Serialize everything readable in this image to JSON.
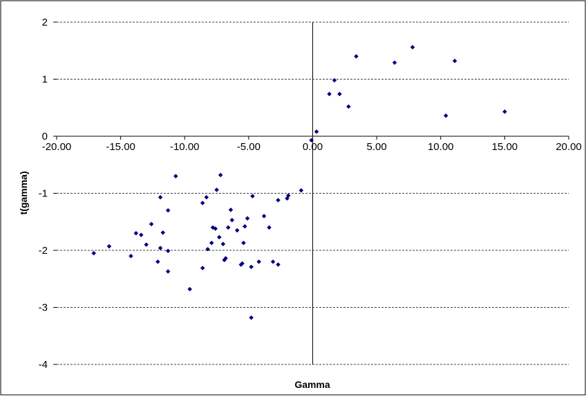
{
  "chart_data": {
    "type": "scatter",
    "title": "",
    "xlabel": "Gamma",
    "ylabel": "t(gamma)",
    "xlim": [
      -20,
      20
    ],
    "ylim": [
      -4,
      2
    ],
    "x_ticks": [
      -20,
      -15,
      -10,
      -5,
      0,
      5,
      10,
      15,
      20
    ],
    "x_tick_labels": [
      "-20.00",
      "-15.00",
      "-10.00",
      "-5.00",
      "0.00",
      "5.00",
      "10.00",
      "15.00",
      "20.00"
    ],
    "y_ticks": [
      2,
      1,
      0,
      -1,
      -2,
      -3,
      -4
    ],
    "y_tick_labels": [
      "2",
      "1",
      "0",
      "-1",
      "-2",
      "-3",
      "-4"
    ],
    "grid": true,
    "legend": "none",
    "marker_color": "#000080",
    "points": [
      [
        -17.1,
        -2.05
      ],
      [
        -15.9,
        -1.93
      ],
      [
        -14.2,
        -2.1
      ],
      [
        -13.8,
        -1.7
      ],
      [
        -13.4,
        -1.73
      ],
      [
        -13.0,
        -1.9
      ],
      [
        -12.6,
        -1.54
      ],
      [
        -12.1,
        -2.2
      ],
      [
        -11.9,
        -1.07
      ],
      [
        -11.9,
        -1.96
      ],
      [
        -11.7,
        -1.69
      ],
      [
        -11.3,
        -2.01
      ],
      [
        -11.3,
        -1.3
      ],
      [
        -11.3,
        -2.37
      ],
      [
        -10.7,
        -0.7
      ],
      [
        -9.6,
        -2.68
      ],
      [
        -8.6,
        -1.17
      ],
      [
        -8.6,
        -2.31
      ],
      [
        -8.3,
        -1.07
      ],
      [
        -8.2,
        -1.98
      ],
      [
        -7.9,
        -1.87
      ],
      [
        -7.8,
        -1.6
      ],
      [
        -7.6,
        -1.62
      ],
      [
        -7.5,
        -0.94
      ],
      [
        -7.3,
        -1.77
      ],
      [
        -7.2,
        -0.68
      ],
      [
        -7.0,
        -1.89
      ],
      [
        -6.9,
        -2.17
      ],
      [
        -6.8,
        -2.14
      ],
      [
        -6.6,
        -1.6
      ],
      [
        -6.4,
        -1.29
      ],
      [
        -6.3,
        -1.47
      ],
      [
        -5.9,
        -1.65
      ],
      [
        -5.6,
        -2.25
      ],
      [
        -5.5,
        -2.23
      ],
      [
        -5.4,
        -1.87
      ],
      [
        -5.3,
        -1.58
      ],
      [
        -5.1,
        -1.44
      ],
      [
        -4.8,
        -2.29
      ],
      [
        -4.8,
        -3.18
      ],
      [
        -4.7,
        -1.05
      ],
      [
        -4.2,
        -2.2
      ],
      [
        -3.8,
        -1.4
      ],
      [
        -3.4,
        -1.6
      ],
      [
        -3.1,
        -2.2
      ],
      [
        -2.7,
        -2.25
      ],
      [
        -2.7,
        -1.12
      ],
      [
        -2.0,
        -1.09
      ],
      [
        -1.9,
        -1.04
      ],
      [
        -0.9,
        -0.95
      ],
      [
        -0.1,
        -0.07
      ],
      [
        0.3,
        0.08
      ],
      [
        1.3,
        0.74
      ],
      [
        1.7,
        0.98
      ],
      [
        2.1,
        0.74
      ],
      [
        2.8,
        0.52
      ],
      [
        3.4,
        1.4
      ],
      [
        6.4,
        1.29
      ],
      [
        7.8,
        1.56
      ],
      [
        10.4,
        0.36
      ],
      [
        11.1,
        1.32
      ],
      [
        15.0,
        0.43
      ]
    ]
  }
}
